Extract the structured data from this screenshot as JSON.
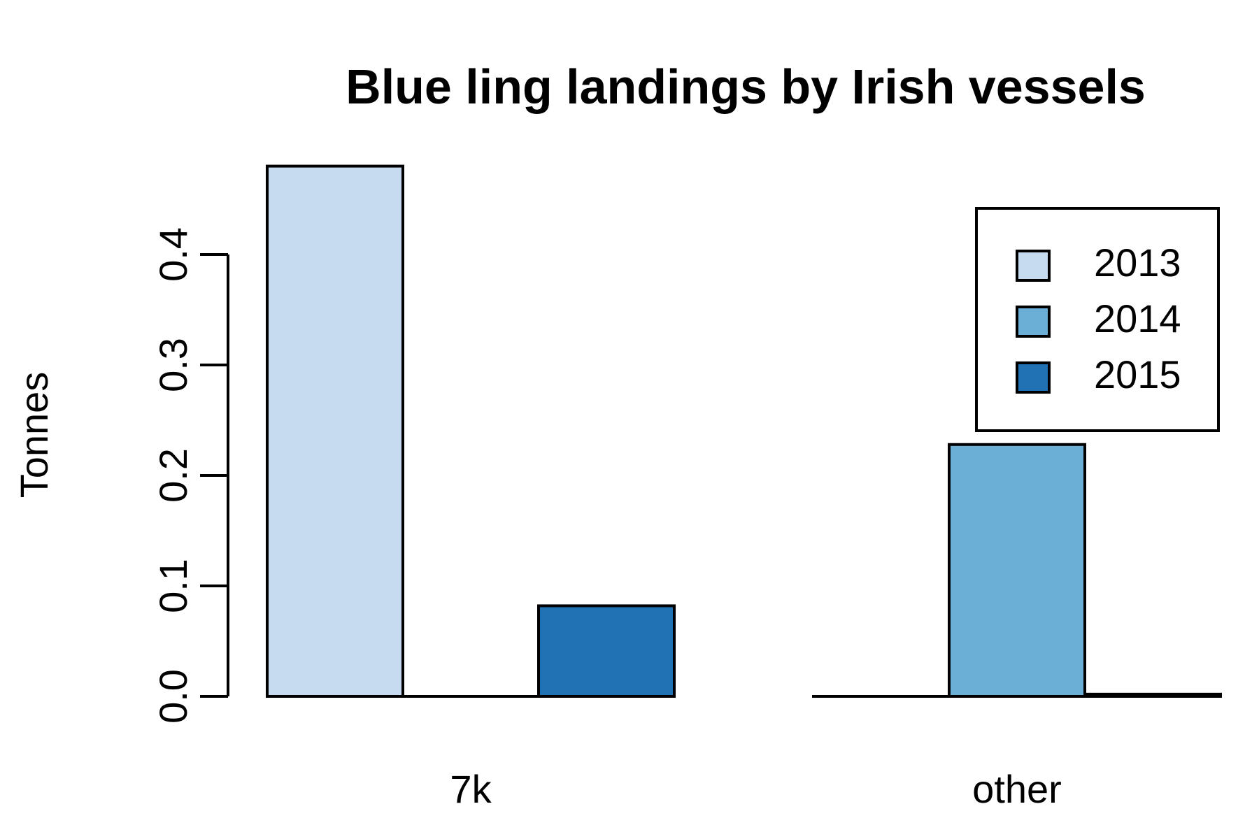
{
  "chart_data": {
    "type": "bar",
    "title": "Blue ling landings by Irish vessels",
    "xlabel": "",
    "ylabel": "Tonnes",
    "categories": [
      "7k",
      "other"
    ],
    "series": [
      {
        "name": "2013",
        "values": [
          0.48,
          0.0
        ],
        "color": "#c6dbef"
      },
      {
        "name": "2014",
        "values": [
          0.0,
          0.228
        ],
        "color": "#6baed6"
      },
      {
        "name": "2015",
        "values": [
          0.082,
          0.002
        ],
        "color": "#2171b5"
      }
    ],
    "y_ticks": [
      "0.0",
      "0.1",
      "0.2",
      "0.3",
      "0.4"
    ],
    "ylim": [
      0,
      0.48
    ],
    "grid": false,
    "legend_position": "top-right"
  }
}
